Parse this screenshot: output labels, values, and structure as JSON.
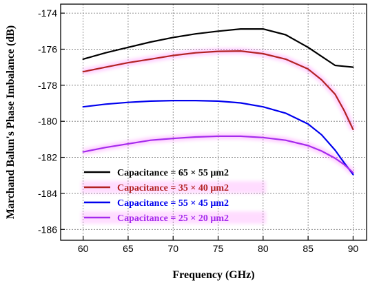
{
  "chart_data": {
    "type": "line",
    "xlabel": "Frequency (GHz)",
    "ylabel": "Marchand Balun's Phase Imbalance (dB)",
    "xlim": [
      57.5,
      91.5
    ],
    "ylim": [
      -186.6,
      -173.5
    ],
    "xticks": [
      60,
      65,
      70,
      75,
      80,
      85,
      90
    ],
    "yticks": [
      -174,
      -176,
      -178,
      -180,
      -182,
      -184,
      -186
    ],
    "grid": true,
    "legend_position": "bottom-left",
    "series": [
      {
        "name": "Capacitance = 65 × 55 µm2",
        "color": "#000000",
        "x": [
          60,
          62.5,
          65,
          67.5,
          70,
          72.5,
          75,
          77.5,
          80,
          82.5,
          85,
          86.5,
          88,
          89,
          90
        ],
        "y": [
          -176.55,
          -176.2,
          -175.9,
          -175.6,
          -175.35,
          -175.15,
          -175.0,
          -174.88,
          -174.88,
          -175.2,
          -175.9,
          -176.4,
          -176.9,
          -176.95,
          -177.0
        ]
      },
      {
        "name": "Capacitance = 35 × 40 µm2",
        "color": "#b22222",
        "x": [
          60,
          62.5,
          65,
          67.5,
          70,
          72.5,
          75,
          77.5,
          80,
          82.5,
          85,
          86.5,
          88,
          89,
          90
        ],
        "y": [
          -177.25,
          -177.0,
          -176.75,
          -176.55,
          -176.35,
          -176.2,
          -176.12,
          -176.1,
          -176.25,
          -176.55,
          -177.1,
          -177.7,
          -178.5,
          -179.4,
          -180.45
        ]
      },
      {
        "name": "Capacitance = 55 × 45 µm2",
        "color": "#0000ee",
        "x": [
          60,
          62.5,
          65,
          67.5,
          70,
          72.5,
          75,
          77.5,
          80,
          82.5,
          85,
          86.5,
          88,
          89,
          90
        ],
        "y": [
          -179.2,
          -179.05,
          -178.95,
          -178.88,
          -178.85,
          -178.85,
          -178.88,
          -178.98,
          -179.2,
          -179.55,
          -180.15,
          -180.75,
          -181.6,
          -182.3,
          -182.95
        ]
      },
      {
        "name": "Capacitance = 25 × 20 µm2",
        "color": "#a52aed",
        "x": [
          60,
          62.5,
          65,
          67.5,
          70,
          72.5,
          75,
          77.5,
          80,
          82.5,
          85,
          86.5,
          88,
          89,
          90
        ],
        "y": [
          -181.7,
          -181.45,
          -181.25,
          -181.05,
          -180.95,
          -180.87,
          -180.83,
          -180.83,
          -180.9,
          -181.05,
          -181.35,
          -181.65,
          -182.05,
          -182.4,
          -182.85
        ]
      }
    ]
  }
}
